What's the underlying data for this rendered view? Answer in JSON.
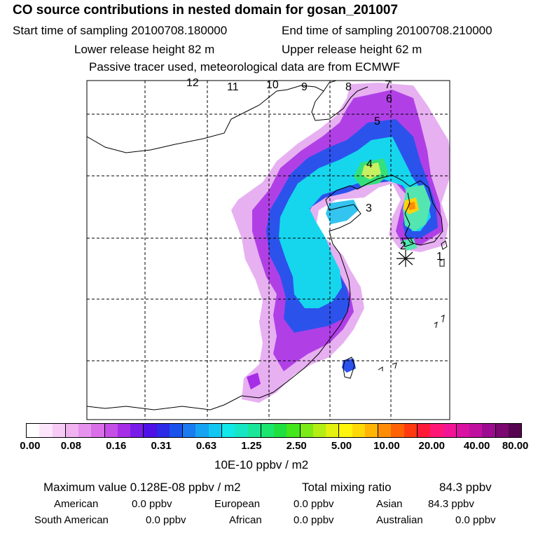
{
  "header": {
    "title": "CO  source contributions in nested domain for gosan_201007",
    "start_time": "Start time of sampling 20100708.180000",
    "end_time": "End time of sampling 20100708.210000",
    "lower_release": "Lower release height   82 m",
    "upper_release": "Upper release height   62 m",
    "passive": "Passive tracer used, meteorological data are from ECMWF"
  },
  "map": {
    "labels": [
      "12",
      "11",
      "10",
      "9",
      "8",
      "7",
      "6",
      "5",
      "4",
      "3",
      "2",
      "1"
    ],
    "receptor_marker": "asterisk-icon"
  },
  "colorbar": {
    "colors": [
      "#ffffff",
      "#fbe6fb",
      "#f6ccf6",
      "#f0b2f0",
      "#e692ee",
      "#d96ee8",
      "#c54ee6",
      "#a62ee6",
      "#7a1ce8",
      "#5010e8",
      "#2c2ce6",
      "#1a52ec",
      "#1a7cf0",
      "#16a4f2",
      "#12c6f2",
      "#12e8ea",
      "#16e6c4",
      "#1ae69a",
      "#1ce66e",
      "#20e040",
      "#44e61c",
      "#7cea16",
      "#b4ee14",
      "#e4f010",
      "#fff40c",
      "#ffd808",
      "#ffb406",
      "#ff8c06",
      "#ff6204",
      "#ff3a10",
      "#ff1a3a",
      "#ff1676",
      "#f21496",
      "#da12a2",
      "#c010a0",
      "#9c0c90",
      "#7a0870",
      "#560650"
    ],
    "tick_labels": [
      "0.00",
      "0.08",
      "0.16",
      "0.31",
      "0.63",
      "1.25",
      "2.50",
      "5.00",
      "10.00",
      "20.00",
      "40.00",
      "80.00"
    ],
    "units": "10E-10 ppbv / m2"
  },
  "summary": {
    "max_value": "Maximum value  0.128E-08 ppbv / m2",
    "total_label": "Total mixing ratio",
    "total_value": "84.3 ppbv",
    "american_label": "American",
    "american_value": "0.0 ppbv",
    "european_label": "European",
    "european_value": "0.0 ppbv",
    "asian_label": "Asian",
    "asian_value": "84.3 ppbv",
    "south_american_label": "South American",
    "south_american_value": "0.0 ppbv",
    "african_label": "African",
    "african_value": "0.0 ppbv",
    "australian_label": "Australian",
    "australian_value": "0.0 ppbv"
  }
}
